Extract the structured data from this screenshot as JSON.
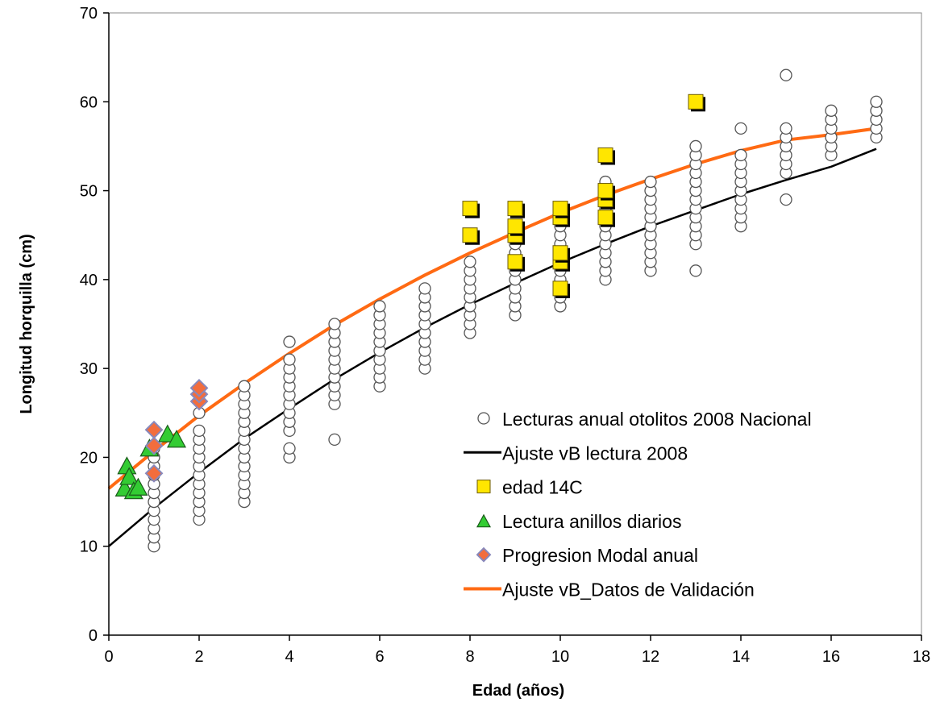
{
  "chart_data": {
    "type": "scatter",
    "xlabel": "Edad (años)",
    "ylabel": "Longitud horquilla (cm)",
    "xlim": [
      0,
      18
    ],
    "ylim": [
      0,
      70
    ],
    "xticks": [
      "0",
      "2",
      "4",
      "6",
      "8",
      "10",
      "12",
      "14",
      "16",
      "18"
    ],
    "yticks": [
      "0",
      "10",
      "20",
      "30",
      "40",
      "50",
      "60",
      "70"
    ],
    "grid": false,
    "legend_position": "lower-right",
    "legend": [
      {
        "label": "Lecturas anual otolitos 2008 Nacional",
        "marker": "circle"
      },
      {
        "label": "Ajuste vB lectura 2008",
        "marker": "line-black"
      },
      {
        "label": "edad 14C",
        "marker": "square"
      },
      {
        "label": "Lectura anillos diarios",
        "marker": "triangle"
      },
      {
        "label": "Progresion Modal anual",
        "marker": "diamond"
      },
      {
        "label": "Ajuste vB_Datos de Validación",
        "marker": "line-orange"
      }
    ],
    "colors": {
      "circle_fill": "#ffffff",
      "circle_stroke": "#555555",
      "square_fill": "#ffe600",
      "triangle_fill": "#33cc33",
      "diamond_fill": "#f26d3d",
      "diamond_stroke": "#8888bb",
      "fit_2008": "#000000",
      "fit_validation": "#ff6a13"
    },
    "series": [
      {
        "name": "Lecturas anual otolitos 2008 Nacional",
        "kind": "scatter",
        "points": [
          [
            1,
            10
          ],
          [
            1,
            11
          ],
          [
            1,
            12
          ],
          [
            1,
            13
          ],
          [
            1,
            14
          ],
          [
            1,
            15
          ],
          [
            1,
            16
          ],
          [
            1,
            17
          ],
          [
            1,
            18
          ],
          [
            1,
            19
          ],
          [
            1,
            20
          ],
          [
            1,
            21
          ],
          [
            2,
            13
          ],
          [
            2,
            14
          ],
          [
            2,
            15
          ],
          [
            2,
            16
          ],
          [
            2,
            17
          ],
          [
            2,
            18
          ],
          [
            2,
            19
          ],
          [
            2,
            20
          ],
          [
            2,
            21
          ],
          [
            2,
            22
          ],
          [
            2,
            23
          ],
          [
            2,
            25
          ],
          [
            3,
            15
          ],
          [
            3,
            16
          ],
          [
            3,
            17
          ],
          [
            3,
            18
          ],
          [
            3,
            19
          ],
          [
            3,
            20
          ],
          [
            3,
            21
          ],
          [
            3,
            22
          ],
          [
            3,
            23
          ],
          [
            3,
            24
          ],
          [
            3,
            25
          ],
          [
            3,
            26
          ],
          [
            3,
            27
          ],
          [
            3,
            28
          ],
          [
            4,
            20
          ],
          [
            4,
            21
          ],
          [
            4,
            23
          ],
          [
            4,
            24
          ],
          [
            4,
            25
          ],
          [
            4,
            26
          ],
          [
            4,
            27
          ],
          [
            4,
            28
          ],
          [
            4,
            29
          ],
          [
            4,
            30
          ],
          [
            4,
            31
          ],
          [
            4,
            33
          ],
          [
            5,
            22
          ],
          [
            5,
            26
          ],
          [
            5,
            27
          ],
          [
            5,
            28
          ],
          [
            5,
            29
          ],
          [
            5,
            30
          ],
          [
            5,
            31
          ],
          [
            5,
            32
          ],
          [
            5,
            33
          ],
          [
            5,
            34
          ],
          [
            5,
            35
          ],
          [
            6,
            28
          ],
          [
            6,
            29
          ],
          [
            6,
            30
          ],
          [
            6,
            31
          ],
          [
            6,
            32
          ],
          [
            6,
            33
          ],
          [
            6,
            34
          ],
          [
            6,
            35
          ],
          [
            6,
            36
          ],
          [
            6,
            37
          ],
          [
            7,
            30
          ],
          [
            7,
            31
          ],
          [
            7,
            32
          ],
          [
            7,
            33
          ],
          [
            7,
            34
          ],
          [
            7,
            35
          ],
          [
            7,
            36
          ],
          [
            7,
            37
          ],
          [
            7,
            38
          ],
          [
            7,
            39
          ],
          [
            8,
            34
          ],
          [
            8,
            35
          ],
          [
            8,
            36
          ],
          [
            8,
            37
          ],
          [
            8,
            38
          ],
          [
            8,
            39
          ],
          [
            8,
            40
          ],
          [
            8,
            41
          ],
          [
            8,
            42
          ],
          [
            9,
            36
          ],
          [
            9,
            37
          ],
          [
            9,
            38
          ],
          [
            9,
            39
          ],
          [
            9,
            40
          ],
          [
            9,
            41
          ],
          [
            9,
            42
          ],
          [
            9,
            43
          ],
          [
            9,
            44
          ],
          [
            9,
            45
          ],
          [
            9,
            46
          ],
          [
            10,
            37
          ],
          [
            10,
            38
          ],
          [
            10,
            39
          ],
          [
            10,
            40
          ],
          [
            10,
            41
          ],
          [
            10,
            42
          ],
          [
            10,
            43
          ],
          [
            10,
            44
          ],
          [
            10,
            45
          ],
          [
            10,
            46
          ],
          [
            10,
            47
          ],
          [
            11,
            40
          ],
          [
            11,
            41
          ],
          [
            11,
            42
          ],
          [
            11,
            43
          ],
          [
            11,
            44
          ],
          [
            11,
            45
          ],
          [
            11,
            46
          ],
          [
            11,
            47
          ],
          [
            11,
            48
          ],
          [
            11,
            49
          ],
          [
            11,
            50
          ],
          [
            11,
            51
          ],
          [
            12,
            41
          ],
          [
            12,
            42
          ],
          [
            12,
            43
          ],
          [
            12,
            44
          ],
          [
            12,
            45
          ],
          [
            12,
            46
          ],
          [
            12,
            47
          ],
          [
            12,
            48
          ],
          [
            12,
            49
          ],
          [
            12,
            50
          ],
          [
            12,
            51
          ],
          [
            13,
            41
          ],
          [
            13,
            44
          ],
          [
            13,
            45
          ],
          [
            13,
            46
          ],
          [
            13,
            47
          ],
          [
            13,
            48
          ],
          [
            13,
            49
          ],
          [
            13,
            50
          ],
          [
            13,
            51
          ],
          [
            13,
            52
          ],
          [
            13,
            53
          ],
          [
            13,
            54
          ],
          [
            13,
            55
          ],
          [
            14,
            46
          ],
          [
            14,
            47
          ],
          [
            14,
            48
          ],
          [
            14,
            49
          ],
          [
            14,
            50
          ],
          [
            14,
            51
          ],
          [
            14,
            52
          ],
          [
            14,
            53
          ],
          [
            14,
            54
          ],
          [
            14,
            57
          ],
          [
            15,
            49
          ],
          [
            15,
            52
          ],
          [
            15,
            53
          ],
          [
            15,
            54
          ],
          [
            15,
            55
          ],
          [
            15,
            56
          ],
          [
            15,
            57
          ],
          [
            15,
            63
          ],
          [
            16,
            54
          ],
          [
            16,
            55
          ],
          [
            16,
            56
          ],
          [
            16,
            57
          ],
          [
            16,
            58
          ],
          [
            16,
            59
          ],
          [
            17,
            56
          ],
          [
            17,
            57
          ],
          [
            17,
            58
          ],
          [
            17,
            59
          ],
          [
            17,
            60
          ]
        ]
      },
      {
        "name": "edad 14C",
        "kind": "scatter",
        "points": [
          [
            8,
            45
          ],
          [
            8,
            48
          ],
          [
            9,
            42
          ],
          [
            9,
            45
          ],
          [
            9,
            46
          ],
          [
            9,
            48
          ],
          [
            10,
            39
          ],
          [
            10,
            42
          ],
          [
            10,
            43
          ],
          [
            10,
            47
          ],
          [
            10,
            48
          ],
          [
            11,
            47
          ],
          [
            11,
            49
          ],
          [
            11,
            50
          ],
          [
            11,
            54
          ],
          [
            13,
            60
          ]
        ]
      },
      {
        "name": "Lectura anillos diarios",
        "kind": "scatter",
        "points": [
          [
            0.35,
            16.5
          ],
          [
            0.4,
            19
          ],
          [
            0.45,
            17.8
          ],
          [
            0.55,
            16.2
          ],
          [
            0.65,
            16.6
          ],
          [
            0.9,
            21
          ],
          [
            1.3,
            22.6
          ],
          [
            1.5,
            22
          ]
        ]
      },
      {
        "name": "Progresion Modal anual",
        "kind": "scatter",
        "points": [
          [
            1,
            18.2
          ],
          [
            1,
            21.3
          ],
          [
            1,
            23.1
          ],
          [
            2,
            26.3
          ],
          [
            2,
            27.1
          ],
          [
            2,
            27.8
          ]
        ]
      },
      {
        "name": "Ajuste vB lectura 2008",
        "kind": "line",
        "points": [
          [
            0,
            10
          ],
          [
            1,
            14.3
          ],
          [
            2,
            18.3
          ],
          [
            3,
            22.1
          ],
          [
            4,
            25.5
          ],
          [
            5,
            28.8
          ],
          [
            6,
            31.8
          ],
          [
            7,
            34.6
          ],
          [
            8,
            37.2
          ],
          [
            9,
            39.6
          ],
          [
            10,
            41.9
          ],
          [
            11,
            44
          ],
          [
            12,
            46
          ],
          [
            13,
            47.8
          ],
          [
            14,
            49.6
          ],
          [
            15,
            51.2
          ],
          [
            16,
            52.7
          ],
          [
            17,
            54.7
          ]
        ]
      },
      {
        "name": "Ajuste vB_Datos de Validación",
        "kind": "line",
        "points": [
          [
            0,
            16.5
          ],
          [
            1,
            20.7
          ],
          [
            2,
            24.7
          ],
          [
            3,
            28.3
          ],
          [
            4,
            31.7
          ],
          [
            5,
            34.9
          ],
          [
            6,
            37.8
          ],
          [
            7,
            40.5
          ],
          [
            8,
            43
          ],
          [
            9,
            45.3
          ],
          [
            10,
            47.5
          ],
          [
            11,
            49.5
          ],
          [
            12,
            51.3
          ],
          [
            13,
            53
          ],
          [
            14,
            54.5
          ],
          [
            15,
            55.7
          ],
          [
            16,
            56.3
          ],
          [
            17,
            57
          ]
        ]
      }
    ]
  }
}
